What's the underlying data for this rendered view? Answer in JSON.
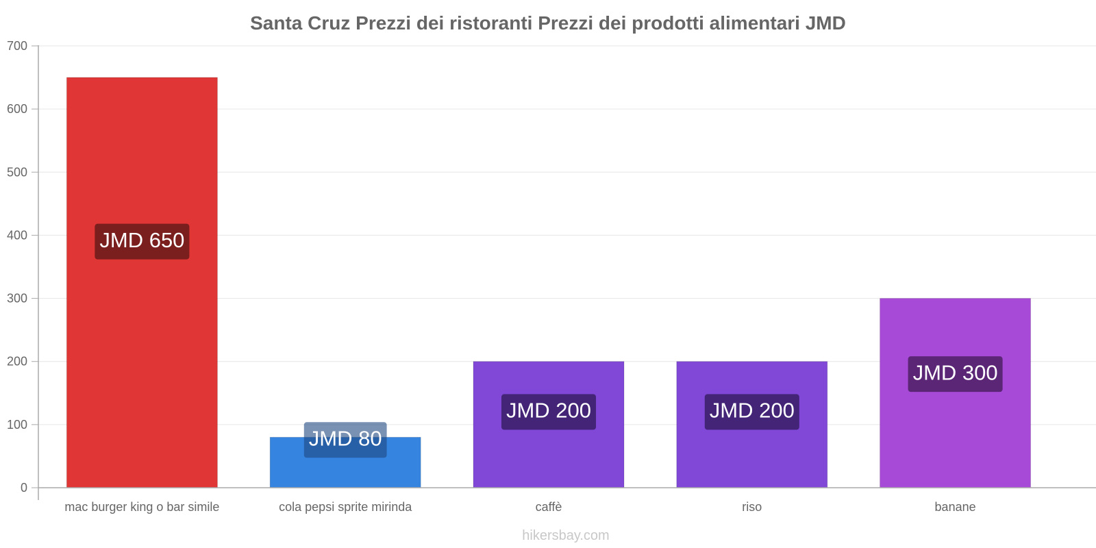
{
  "chart_data": {
    "type": "bar",
    "title": "Santa Cruz Prezzi dei ristoranti Prezzi dei prodotti alimentari JMD",
    "xlabel": "",
    "ylabel": "",
    "ylim": [
      0,
      700
    ],
    "yticks": [
      0,
      100,
      200,
      300,
      400,
      500,
      600,
      700
    ],
    "grid": true,
    "categories": [
      "mac burger king o bar simile",
      "cola pepsi sprite mirinda",
      "caffè",
      "riso",
      "banane"
    ],
    "values": [
      650,
      80,
      200,
      200,
      300
    ],
    "data_labels": [
      "JMD 650",
      "JMD 80",
      "JMD 200",
      "JMD 200",
      "JMD 300"
    ],
    "colors": [
      "#e03636",
      "#3584e0",
      "#8148d8",
      "#8148d8",
      "#a84ad8"
    ],
    "label_bg_colors": [
      "#7a1e1e",
      "#1f4880",
      "#432477",
      "#432477",
      "#5c2677"
    ],
    "label_bg_opacity": [
      1,
      0.6,
      1,
      1,
      1
    ]
  },
  "watermark": "hikersbay.com"
}
